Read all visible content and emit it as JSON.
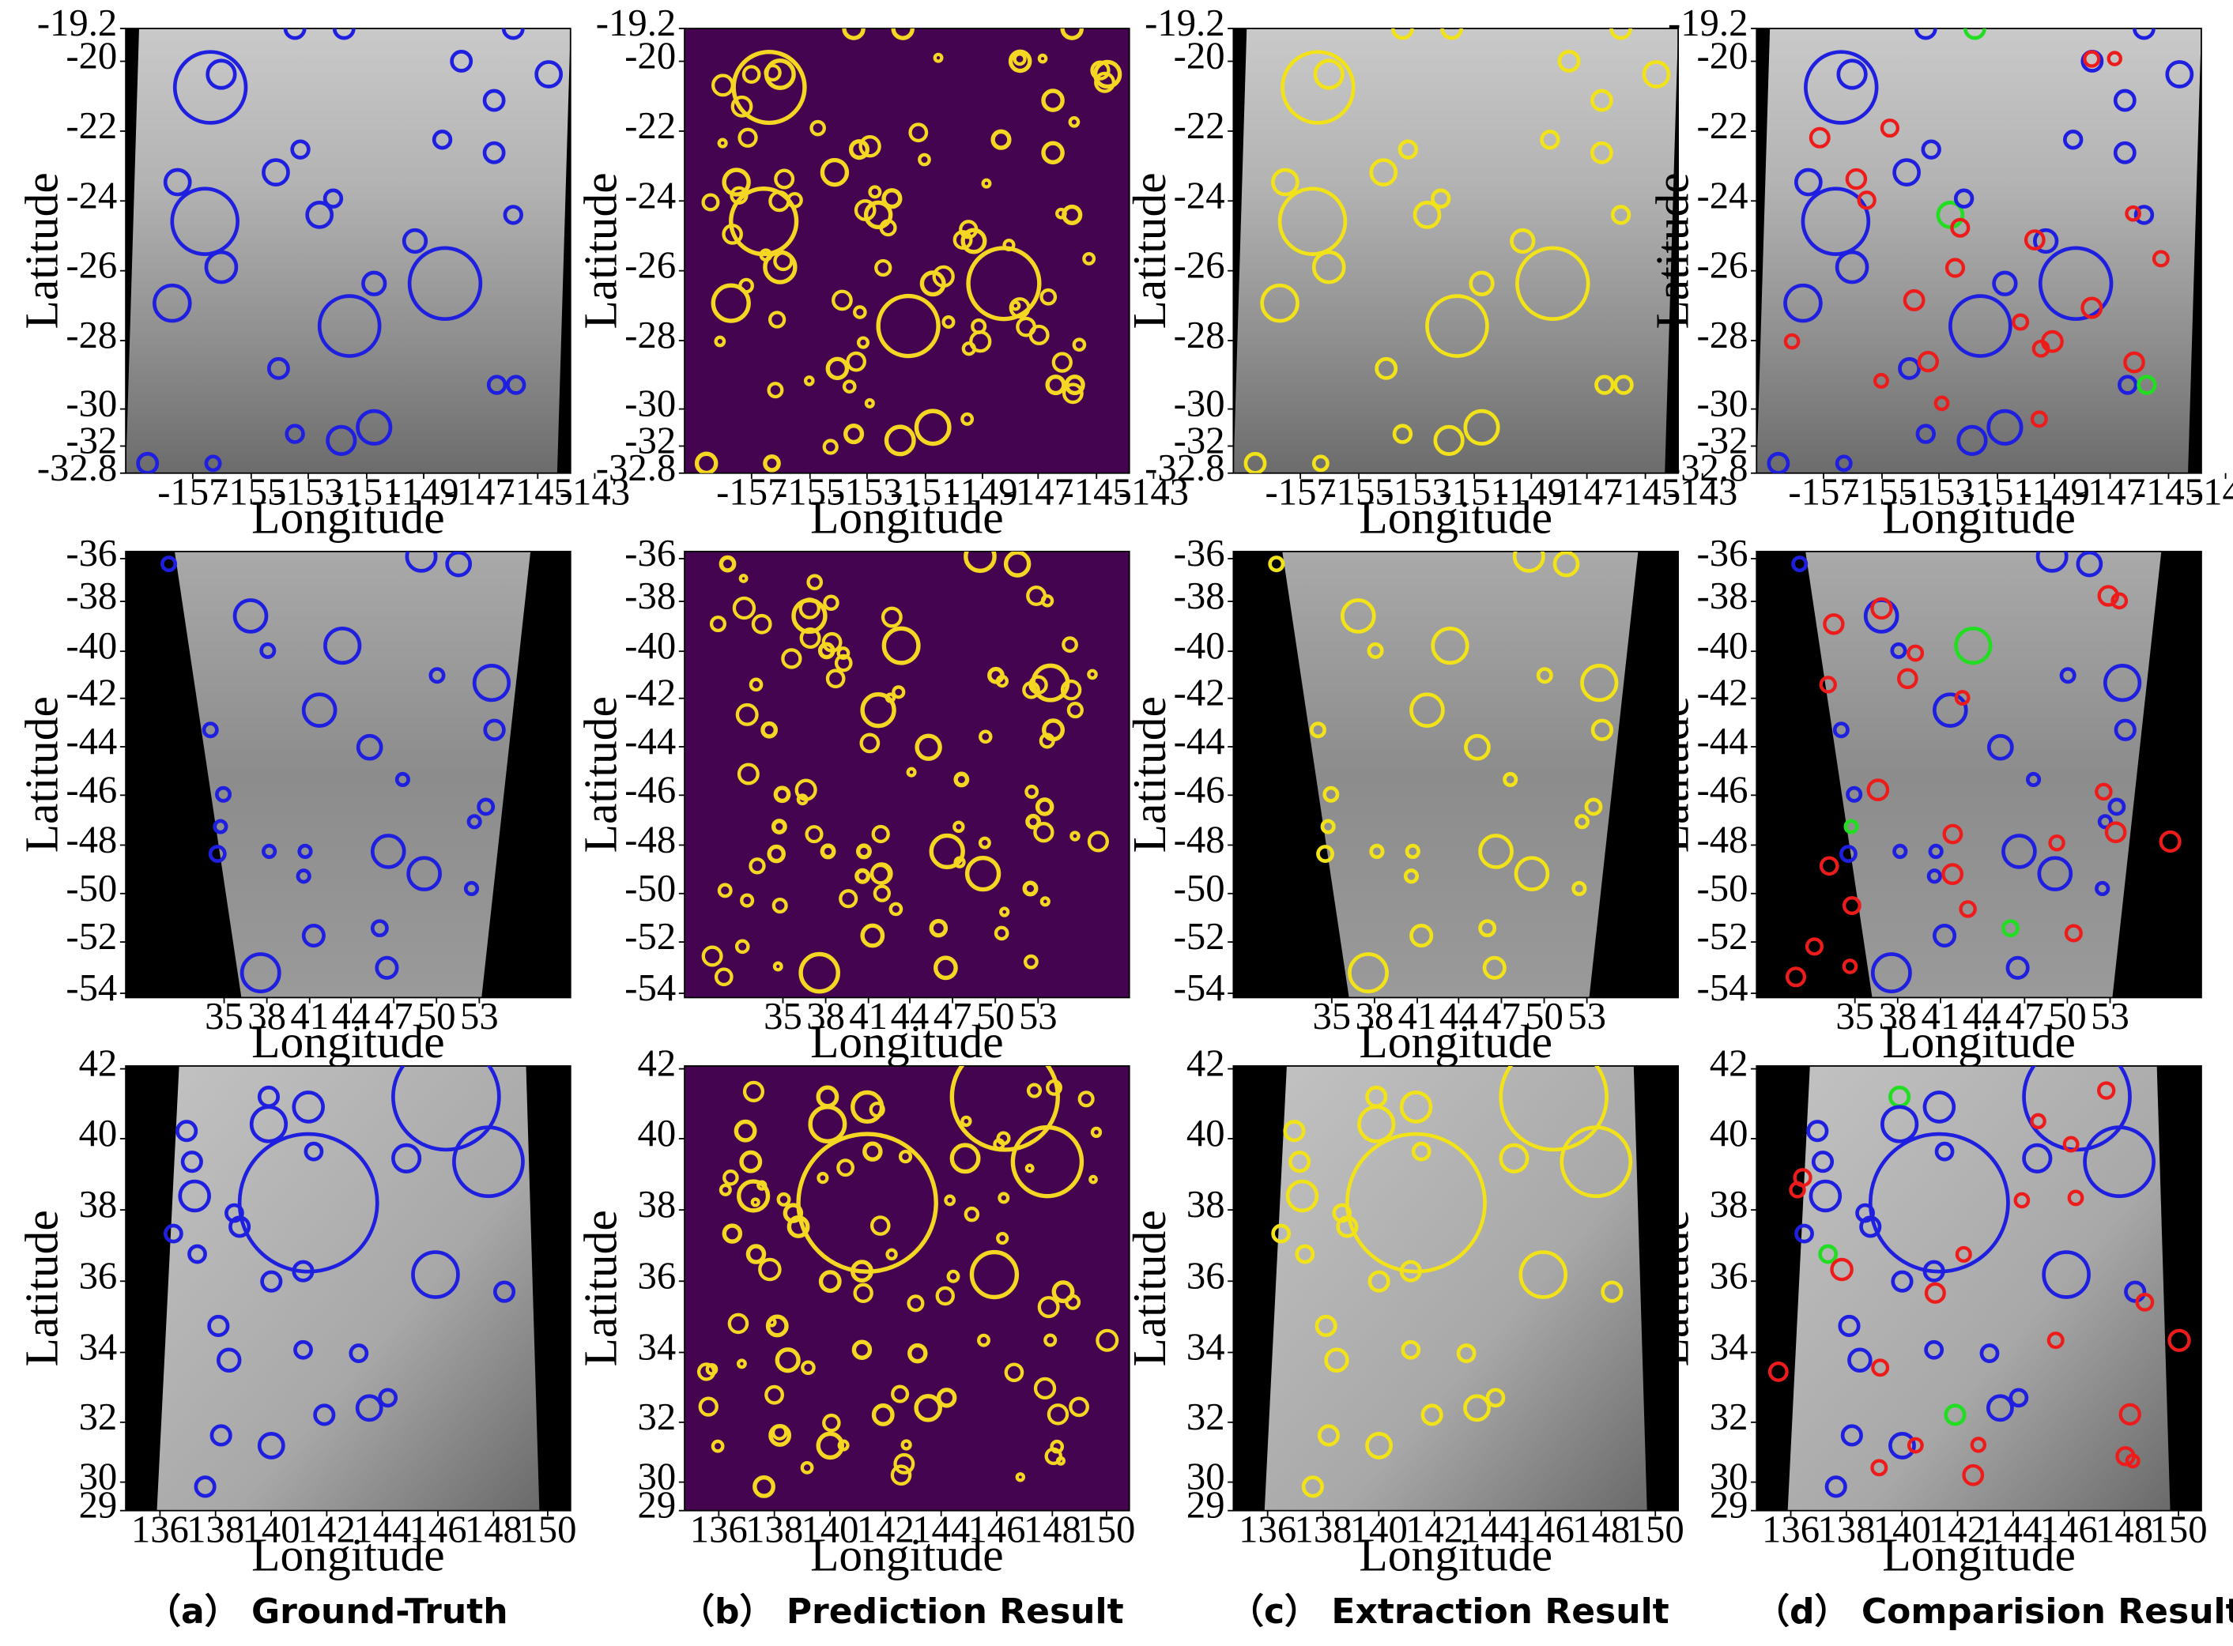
{
  "figure": {
    "captions": [
      "（a） Ground-Truth",
      "（b） Prediction Result",
      "（c） Extraction Result",
      "（d） Comparision Result"
    ],
    "xlabel": "Longitude",
    "ylabel": "Latitude"
  },
  "colors": {
    "ground_truth": "#1f1fe0",
    "extraction": "#f2e21a",
    "prediction_fg": "#f5d623",
    "prediction_bg": "#44044f",
    "false_positive": "#ee1b1b",
    "missed": "#22dd22"
  },
  "rows": [
    {
      "x_ticks": [
        "-157",
        "-155",
        "-153",
        "-151",
        "-149",
        "-147",
        "-145",
        "-143"
      ],
      "y_ticks": [
        "-19.2",
        "-20",
        "-22",
        "-24",
        "-26",
        "-28",
        "-30",
        "-32",
        "-32.8"
      ]
    },
    {
      "x_ticks": [
        "35",
        "38",
        "41",
        "44",
        "47",
        "50",
        "53"
      ],
      "y_ticks": [
        "-36",
        "-38",
        "-40",
        "-42",
        "-44",
        "-46",
        "-48",
        "-50",
        "-52",
        "-54"
      ]
    },
    {
      "x_ticks": [
        "136",
        "138",
        "140",
        "142",
        "144",
        "146",
        "148",
        "150"
      ],
      "y_ticks": [
        "42",
        "40",
        "38",
        "36",
        "34",
        "32",
        "30",
        "29"
      ]
    }
  ],
  "chart_data": [
    {
      "type": "scatter",
      "description_source": "row 1 crater detections",
      "x_range": [
        -158.5,
        -142.2
      ],
      "y_range": [
        -32.8,
        -19.2
      ],
      "ground_truth_craters": [
        {
          "lon": -155.4,
          "lat": -21.0,
          "r_deg": 1.3
        },
        {
          "lon": -155.0,
          "lat": -20.6,
          "r_deg": 0.5
        },
        {
          "lon": -152.3,
          "lat": -19.2,
          "r_deg": 0.35
        },
        {
          "lon": -150.5,
          "lat": -19.2,
          "r_deg": 0.35
        },
        {
          "lon": -144.3,
          "lat": -19.2,
          "r_deg": 0.35
        },
        {
          "lon": -146.2,
          "lat": -20.2,
          "r_deg": 0.35
        },
        {
          "lon": -143.0,
          "lat": -20.6,
          "r_deg": 0.45
        },
        {
          "lon": -145.0,
          "lat": -21.4,
          "r_deg": 0.35
        },
        {
          "lon": -146.9,
          "lat": -22.6,
          "r_deg": 0.3
        },
        {
          "lon": -145.0,
          "lat": -23.0,
          "r_deg": 0.35
        },
        {
          "lon": -156.6,
          "lat": -23.9,
          "r_deg": 0.45
        },
        {
          "lon": -155.6,
          "lat": -25.1,
          "r_deg": 1.2
        },
        {
          "lon": -153.0,
          "lat": -23.6,
          "r_deg": 0.45
        },
        {
          "lon": -152.1,
          "lat": -22.9,
          "r_deg": 0.3
        },
        {
          "lon": -151.4,
          "lat": -24.9,
          "r_deg": 0.45
        },
        {
          "lon": -150.9,
          "lat": -24.4,
          "r_deg": 0.3
        },
        {
          "lon": -144.3,
          "lat": -24.9,
          "r_deg": 0.3
        },
        {
          "lon": -147.9,
          "lat": -25.7,
          "r_deg": 0.4
        },
        {
          "lon": -146.8,
          "lat": -27.0,
          "r_deg": 1.3
        },
        {
          "lon": -155.0,
          "lat": -26.5,
          "r_deg": 0.55
        },
        {
          "lon": -156.8,
          "lat": -27.6,
          "r_deg": 0.65
        },
        {
          "lon": -149.4,
          "lat": -27.0,
          "r_deg": 0.4
        },
        {
          "lon": -150.3,
          "lat": -28.3,
          "r_deg": 1.1
        },
        {
          "lon": -152.9,
          "lat": -29.6,
          "r_deg": 0.35
        },
        {
          "lon": -144.9,
          "lat": -30.1,
          "r_deg": 0.3
        },
        {
          "lon": -144.2,
          "lat": -30.1,
          "r_deg": 0.3
        },
        {
          "lon": -149.4,
          "lat": -31.4,
          "r_deg": 0.6
        },
        {
          "lon": -150.6,
          "lat": -31.8,
          "r_deg": 0.5
        },
        {
          "lon": -152.3,
          "lat": -31.6,
          "r_deg": 0.3
        },
        {
          "lon": -157.7,
          "lat": -32.5,
          "r_deg": 0.35
        },
        {
          "lon": -155.3,
          "lat": -32.5,
          "r_deg": 0.25
        }
      ]
    },
    {
      "type": "scatter",
      "description_source": "row 2 crater detections",
      "x_range": [
        28.5,
        59.5
      ],
      "y_range": [
        -54.0,
        -36.0
      ],
      "ground_truth_craters": [
        {
          "lon": 31.5,
          "lat": -36.5,
          "r_deg": 0.45
        },
        {
          "lon": 37.2,
          "lat": -38.6,
          "r_deg": 1.1
        },
        {
          "lon": 38.4,
          "lat": -40.0,
          "r_deg": 0.45
        },
        {
          "lon": 43.6,
          "lat": -39.8,
          "r_deg": 1.2
        },
        {
          "lon": 49.1,
          "lat": -36.2,
          "r_deg": 1.0
        },
        {
          "lon": 51.7,
          "lat": -36.5,
          "r_deg": 0.8
        },
        {
          "lon": 42.0,
          "lat": -42.4,
          "r_deg": 1.1
        },
        {
          "lon": 50.2,
          "lat": -41.0,
          "r_deg": 0.45
        },
        {
          "lon": 54.0,
          "lat": -41.3,
          "r_deg": 1.2
        },
        {
          "lon": 54.2,
          "lat": -43.2,
          "r_deg": 0.65
        },
        {
          "lon": 45.5,
          "lat": -43.9,
          "r_deg": 0.8
        },
        {
          "lon": 34.4,
          "lat": -43.2,
          "r_deg": 0.45
        },
        {
          "lon": 47.8,
          "lat": -45.2,
          "r_deg": 0.35
        },
        {
          "lon": 35.3,
          "lat": -45.8,
          "r_deg": 0.45
        },
        {
          "lon": 35.1,
          "lat": -47.1,
          "r_deg": 0.35
        },
        {
          "lon": 34.9,
          "lat": -48.2,
          "r_deg": 0.5
        },
        {
          "lon": 38.5,
          "lat": -48.1,
          "r_deg": 0.4
        },
        {
          "lon": 41.0,
          "lat": -48.1,
          "r_deg": 0.4
        },
        {
          "lon": 40.9,
          "lat": -49.1,
          "r_deg": 0.4
        },
        {
          "lon": 46.8,
          "lat": -48.1,
          "r_deg": 1.1
        },
        {
          "lon": 49.3,
          "lat": -49.0,
          "r_deg": 1.1
        },
        {
          "lon": 53.6,
          "lat": -46.3,
          "r_deg": 0.5
        },
        {
          "lon": 52.8,
          "lat": -46.9,
          "r_deg": 0.35
        },
        {
          "lon": 52.6,
          "lat": -49.6,
          "r_deg": 0.4
        },
        {
          "lon": 41.6,
          "lat": -51.5,
          "r_deg": 0.7
        },
        {
          "lon": 46.2,
          "lat": -51.2,
          "r_deg": 0.5
        },
        {
          "lon": 46.7,
          "lat": -52.8,
          "r_deg": 0.7
        },
        {
          "lon": 37.9,
          "lat": -53.0,
          "r_deg": 1.3
        }
      ]
    },
    {
      "type": "scatter",
      "description_source": "row 3 crater detections",
      "x_range": [
        134.2,
        151.0
      ],
      "y_range": [
        29.0,
        42.0
      ],
      "ground_truth_craters": [
        {
          "lon": 146.3,
          "lat": 41.1,
          "r_deg": 2.0
        },
        {
          "lon": 147.9,
          "lat": 39.2,
          "r_deg": 1.3
        },
        {
          "lon": 141.1,
          "lat": 38.0,
          "r_deg": 2.6
        },
        {
          "lon": 139.6,
          "lat": 41.1,
          "r_deg": 0.35
        },
        {
          "lon": 139.6,
          "lat": 40.3,
          "r_deg": 0.65
        },
        {
          "lon": 141.1,
          "lat": 40.8,
          "r_deg": 0.55
        },
        {
          "lon": 141.3,
          "lat": 39.5,
          "r_deg": 0.3
        },
        {
          "lon": 144.8,
          "lat": 39.3,
          "r_deg": 0.5
        },
        {
          "lon": 136.5,
          "lat": 40.1,
          "r_deg": 0.35
        },
        {
          "lon": 136.7,
          "lat": 39.2,
          "r_deg": 0.35
        },
        {
          "lon": 136.8,
          "lat": 38.2,
          "r_deg": 0.55
        },
        {
          "lon": 138.3,
          "lat": 37.7,
          "r_deg": 0.3
        },
        {
          "lon": 138.5,
          "lat": 37.3,
          "r_deg": 0.35
        },
        {
          "lon": 136.0,
          "lat": 37.1,
          "r_deg": 0.3
        },
        {
          "lon": 136.9,
          "lat": 36.5,
          "r_deg": 0.3
        },
        {
          "lon": 145.9,
          "lat": 35.9,
          "r_deg": 0.85
        },
        {
          "lon": 139.7,
          "lat": 35.7,
          "r_deg": 0.35
        },
        {
          "lon": 140.9,
          "lat": 36.0,
          "r_deg": 0.35
        },
        {
          "lon": 148.5,
          "lat": 35.4,
          "r_deg": 0.35
        },
        {
          "lon": 137.7,
          "lat": 34.4,
          "r_deg": 0.35
        },
        {
          "lon": 138.1,
          "lat": 33.4,
          "r_deg": 0.4
        },
        {
          "lon": 140.9,
          "lat": 33.7,
          "r_deg": 0.3
        },
        {
          "lon": 143.0,
          "lat": 33.6,
          "r_deg": 0.3
        },
        {
          "lon": 143.4,
          "lat": 32.0,
          "r_deg": 0.45
        },
        {
          "lon": 144.1,
          "lat": 32.3,
          "r_deg": 0.3
        },
        {
          "lon": 141.7,
          "lat": 31.8,
          "r_deg": 0.35
        },
        {
          "lon": 137.8,
          "lat": 31.2,
          "r_deg": 0.35
        },
        {
          "lon": 139.7,
          "lat": 30.9,
          "r_deg": 0.45
        },
        {
          "lon": 137.2,
          "lat": 29.7,
          "r_deg": 0.35
        }
      ]
    }
  ]
}
